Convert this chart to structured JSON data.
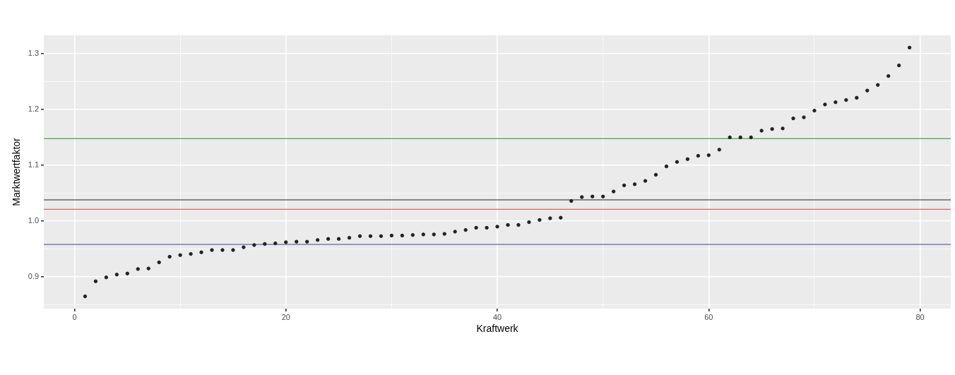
{
  "chart_data": {
    "type": "scatter",
    "xlabel": "Kraftwerk",
    "ylabel": "Marktwertfaktor",
    "x": [
      1,
      2,
      3,
      4,
      5,
      6,
      7,
      8,
      9,
      10,
      11,
      12,
      13,
      14,
      15,
      16,
      17,
      18,
      19,
      20,
      21,
      22,
      23,
      24,
      25,
      26,
      27,
      28,
      29,
      30,
      31,
      32,
      33,
      34,
      35,
      36,
      37,
      38,
      39,
      40,
      41,
      42,
      43,
      44,
      45,
      46,
      47,
      48,
      49,
      50,
      51,
      52,
      53,
      54,
      55,
      56,
      57,
      58,
      59,
      60,
      61,
      62,
      63,
      64,
      65,
      66,
      67,
      68,
      69,
      70,
      71,
      72,
      73,
      74,
      75,
      76,
      77,
      78,
      79
    ],
    "series": [
      {
        "color": "#222222",
        "values": [
          0.865,
          0.892,
          0.899,
          0.904,
          0.906,
          0.914,
          0.915,
          0.926,
          0.936,
          0.939,
          0.941,
          0.944,
          0.948,
          0.948,
          0.948,
          0.953,
          0.957,
          0.959,
          0.96,
          0.962,
          0.963,
          0.963,
          0.966,
          0.968,
          0.968,
          0.97,
          0.973,
          0.973,
          0.973,
          0.974,
          0.974,
          0.975,
          0.976,
          0.976,
          0.977,
          0.981,
          0.984,
          0.988,
          0.988,
          0.99,
          0.993,
          0.993,
          0.998,
          1.002,
          1.005,
          1.006,
          1.036,
          1.043,
          1.044,
          1.044,
          1.053,
          1.064,
          1.066,
          1.072,
          1.083,
          1.098,
          1.106,
          1.111,
          1.117,
          1.118,
          1.128,
          1.15,
          1.15,
          1.15,
          1.162,
          1.165,
          1.166,
          1.184,
          1.186,
          1.198,
          1.209,
          1.213,
          1.217,
          1.221,
          1.234,
          1.244,
          1.26,
          1.279,
          1.311
        ]
      }
    ],
    "xlim": [
      -2.9,
      82.9
    ],
    "ylim": [
      0.843,
      1.333
    ],
    "xticks": [
      0,
      {
        "value": 10,
        "label": null
      },
      20,
      {
        "value": 30,
        "label": null
      },
      40,
      {
        "value": 50,
        "label": null
      },
      60,
      {
        "value": 70,
        "label": null
      },
      80
    ],
    "yticks": [
      {
        "value": 0.85,
        "label": null
      },
      0.9,
      {
        "value": 0.95,
        "label": null
      },
      {
        "value": 1,
        "label": "1.0"
      },
      {
        "value": 1.05,
        "label": null
      },
      1.1,
      {
        "value": 1.15,
        "label": null
      },
      1.2,
      {
        "value": 1.25,
        "label": null
      },
      1.3
    ],
    "ref_lines": [
      {
        "axis": "y",
        "value": 1.148,
        "color": "#4a9a4a"
      },
      {
        "axis": "y",
        "value": 1.038,
        "color": "#222222"
      },
      {
        "axis": "y",
        "value": 1.021,
        "color": "#e06060"
      },
      {
        "axis": "y",
        "value": 0.958,
        "color": "#5a6aaa"
      }
    ],
    "grid": true,
    "marker": "circle",
    "legend": false
  }
}
